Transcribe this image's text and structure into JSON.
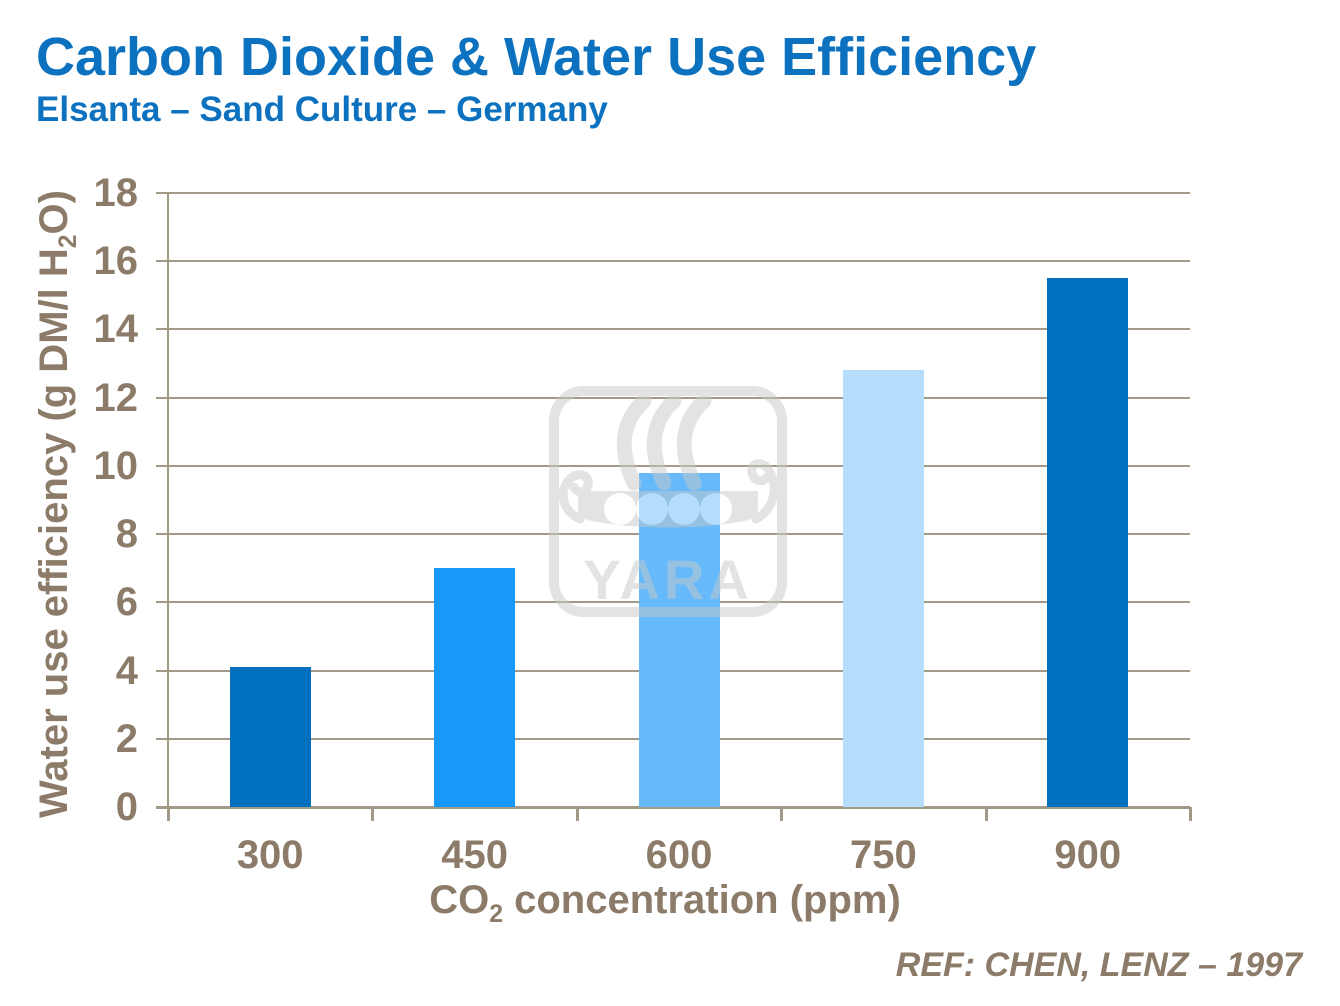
{
  "header": {
    "title": "Carbon Dioxide & Water Use Efficiency",
    "subtitle": "Elsanta – Sand Culture – Germany"
  },
  "footer": {
    "reference": "REF: CHEN, LENZ – 1997"
  },
  "watermark": {
    "label": "YARA"
  },
  "colors": {
    "title_blue": "#0c72bf",
    "axis_text_brown": "#8c7b69",
    "gridline": "#a39989",
    "watermark_gray": "#c9c9c9"
  },
  "chart_data": {
    "type": "bar",
    "title": "Carbon Dioxide & Water Use Efficiency",
    "subtitle": "Elsanta – Sand Culture – Germany",
    "categories": [
      "300",
      "450",
      "600",
      "750",
      "900"
    ],
    "values": [
      4.1,
      7.0,
      9.8,
      12.8,
      15.5
    ],
    "bar_colors": [
      "#0070BE",
      "#1899FA",
      "#66BAFB",
      "#B7DDFC",
      "#0070BE"
    ],
    "xlabel": {
      "pre": "CO",
      "sub": "2",
      "post": " concentration (ppm)"
    },
    "ylabel": {
      "pre": "Water use efficiency (g DM/l H",
      "sub": "2",
      "post": "O)"
    },
    "ylim": [
      0,
      18
    ],
    "ytick_step": 2,
    "yticks": [
      "0",
      "2",
      "4",
      "6",
      "8",
      "10",
      "12",
      "14",
      "16",
      "18"
    ],
    "grid": true,
    "legend": "none"
  }
}
